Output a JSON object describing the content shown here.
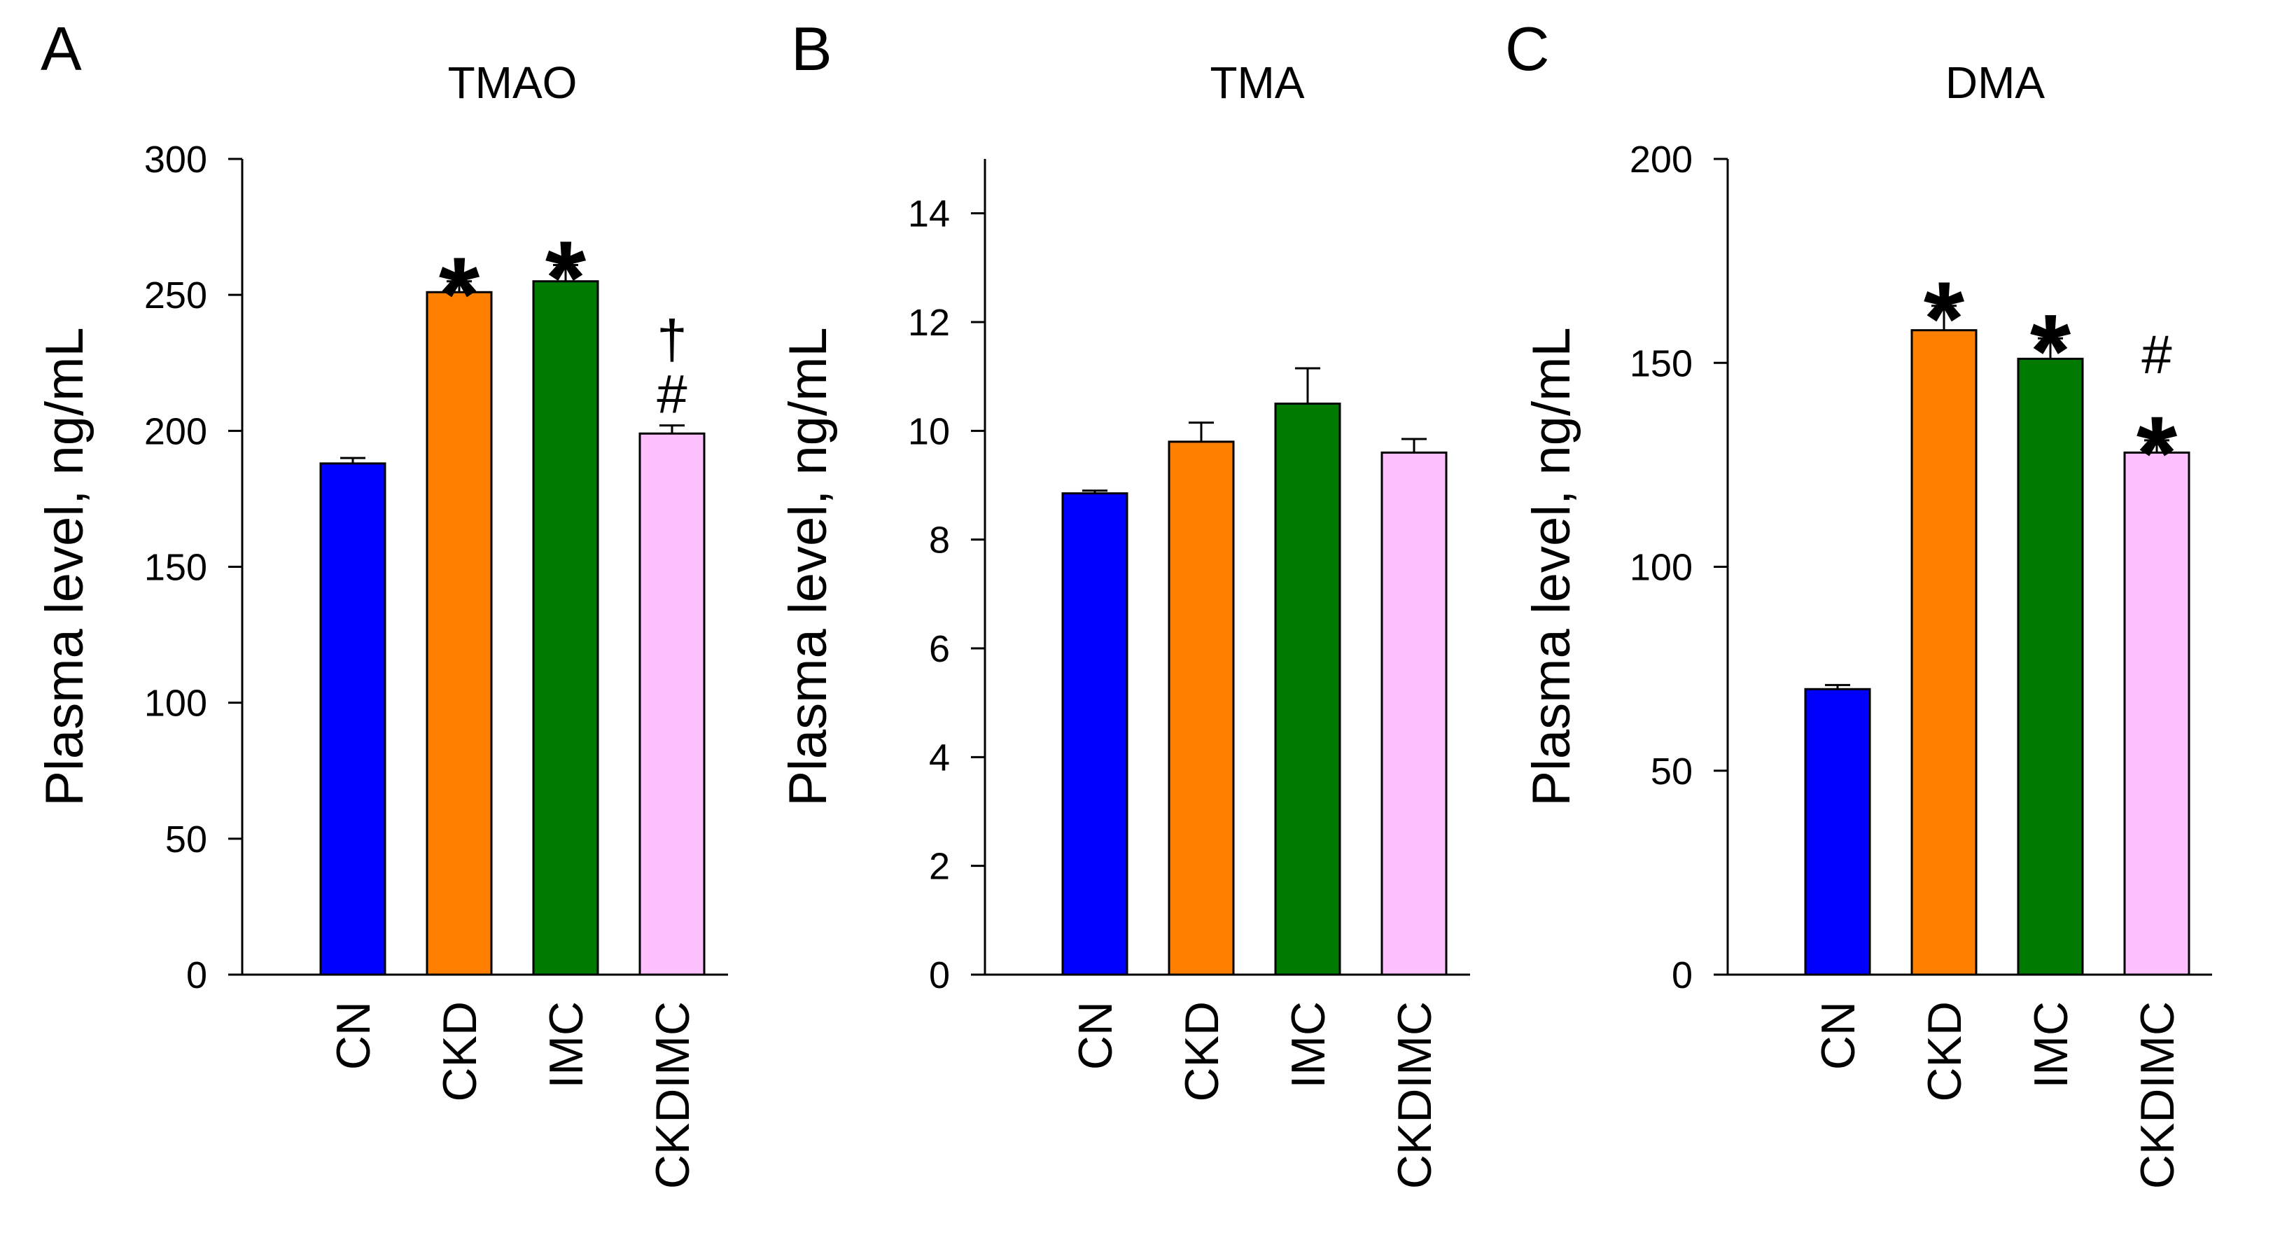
{
  "chart_data": [
    {
      "type": "bar",
      "panel": "A",
      "title": "TMAO",
      "ylabel": "Plasma level, ng/mL",
      "xlabel": "",
      "ylim": [
        0,
        300
      ],
      "yticks": [
        0,
        50,
        100,
        150,
        200,
        250,
        300
      ],
      "yticklabels": [
        "0",
        "50",
        "100",
        "150",
        "200",
        "250",
        "300"
      ],
      "categories": [
        "CN",
        "CKD",
        "IMC",
        "CKDIMC"
      ],
      "values": [
        188,
        251,
        255,
        199
      ],
      "errors": [
        2,
        4,
        6,
        3
      ],
      "colors": [
        "#0000ff",
        "#ff8000",
        "#007a00",
        "#ffc0ff"
      ],
      "annotations": [
        [],
        [
          "*"
        ],
        [
          "*"
        ],
        [
          "#",
          "†"
        ]
      ]
    },
    {
      "type": "bar",
      "panel": "B",
      "title": "TMA",
      "ylabel": "Plasma level, ng/mL",
      "xlabel": "",
      "ylim": [
        0,
        15
      ],
      "yticks": [
        0,
        2,
        4,
        6,
        8,
        10,
        12,
        14
      ],
      "yticklabels": [
        "0",
        "2",
        "4",
        "6",
        "8",
        "10",
        "12",
        "14"
      ],
      "categories": [
        "CN",
        "CKD",
        "IMC",
        "CKDIMC"
      ],
      "values": [
        8.85,
        9.8,
        10.5,
        9.6
      ],
      "errors": [
        0.05,
        0.35,
        0.65,
        0.25
      ],
      "colors": [
        "#0000ff",
        "#ff8000",
        "#007a00",
        "#ffc0ff"
      ],
      "annotations": [
        [],
        [],
        [],
        []
      ]
    },
    {
      "type": "bar",
      "panel": "C",
      "title": "DMA",
      "ylabel": "Plasma level, ng/mL",
      "xlabel": "",
      "ylim": [
        0,
        200
      ],
      "yticks": [
        0,
        50,
        100,
        150,
        200
      ],
      "yticklabels": [
        "0",
        "50",
        "100",
        "150",
        "200"
      ],
      "categories": [
        "CN",
        "CKD",
        "IMC",
        "CKDIMC"
      ],
      "values": [
        70,
        158,
        151,
        128
      ],
      "errors": [
        1,
        6,
        5,
        3
      ],
      "colors": [
        "#0000ff",
        "#ff8000",
        "#007a00",
        "#ffc0ff"
      ],
      "annotations": [
        [],
        [
          "*"
        ],
        [
          "*"
        ],
        [
          "*",
          "#"
        ]
      ]
    }
  ]
}
